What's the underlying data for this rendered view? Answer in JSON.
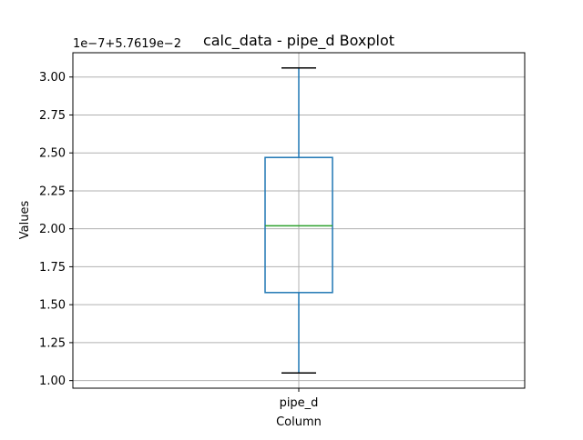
{
  "chart_data": {
    "type": "box",
    "title": "calc_data - pipe_d Boxplot",
    "xlabel": "Column",
    "ylabel": "Values",
    "offset_label": "1e−7+5.7619e−2",
    "categories": [
      "pipe_d"
    ],
    "box": {
      "whisker_low": 1.05,
      "q1": 1.58,
      "median": 2.02,
      "q3": 2.47,
      "whisker_high": 3.06
    },
    "yticks": [
      "1.00",
      "1.25",
      "1.50",
      "1.75",
      "2.00",
      "2.25",
      "2.50",
      "2.75",
      "3.00"
    ],
    "ylim": [
      0.95,
      3.16
    ],
    "grid": true,
    "colors": {
      "box": "#1f77b4",
      "median": "#2ca02c",
      "whisker": "#1f77b4",
      "cap": "#000000",
      "grid": "#b0b0b0"
    }
  }
}
